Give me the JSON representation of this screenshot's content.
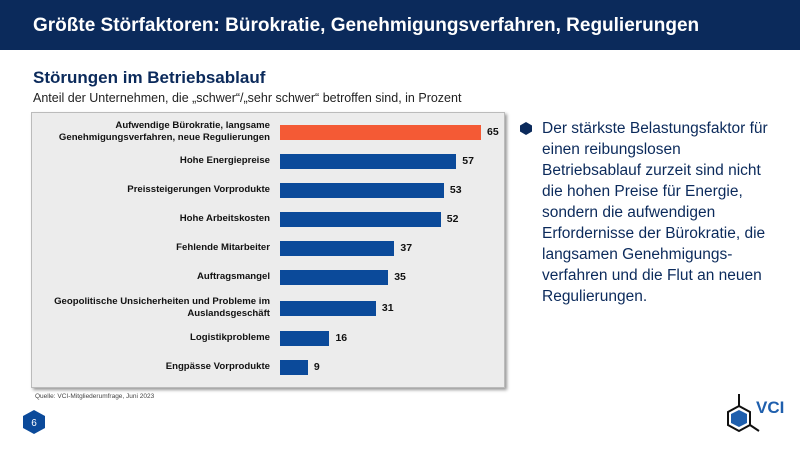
{
  "header": {
    "title": "Größte Störfaktoren: Bürokratie, Genehmigungsverfahren, Regulierungen"
  },
  "chart_data": {
    "type": "bar",
    "orientation": "horizontal",
    "title": "Störungen im Betriebsablauf",
    "subtitle": "Anteil der Unternehmen, die „schwer“/„sehr schwer“ betroffen sind, in Prozent",
    "categories": [
      "Aufwendige Bürokratie, langsame Genehmigungsverfahren, neue Regulierungen",
      "Hohe Energiepreise",
      "Preissteigerungen Vorprodukte",
      "Hohe Arbeitskosten",
      "Fehlende Mitarbeiter",
      "Auftragsmangel",
      "Geopolitische Unsicherheiten und Probleme im Auslandsgeschäft",
      "Logistikprobleme",
      "Engpässe Vorprodukte"
    ],
    "values": [
      65,
      57,
      53,
      52,
      37,
      35,
      31,
      16,
      9
    ],
    "colors": [
      "#f45a35",
      "#0b4a9a",
      "#0b4a9a",
      "#0b4a9a",
      "#0b4a9a",
      "#0b4a9a",
      "#0b4a9a",
      "#0b4a9a",
      "#0b4a9a"
    ],
    "xlim": [
      0,
      65
    ]
  },
  "source": "Quelle: VCI-Mitgliederumfrage, Juni 2023",
  "bullet": "Der stärkste Belastungsfaktor für einen reibungslosen Betriebsablauf zurzeit sind nicht die hohen Preise für Energie, sondern die aufwendigen Erfordernisse der  Bürokratie, die langsamen Genehmigungs-verfahren und die Flut an neuen Regulierungen.",
  "page_number": "6",
  "logo_text": "VCI"
}
